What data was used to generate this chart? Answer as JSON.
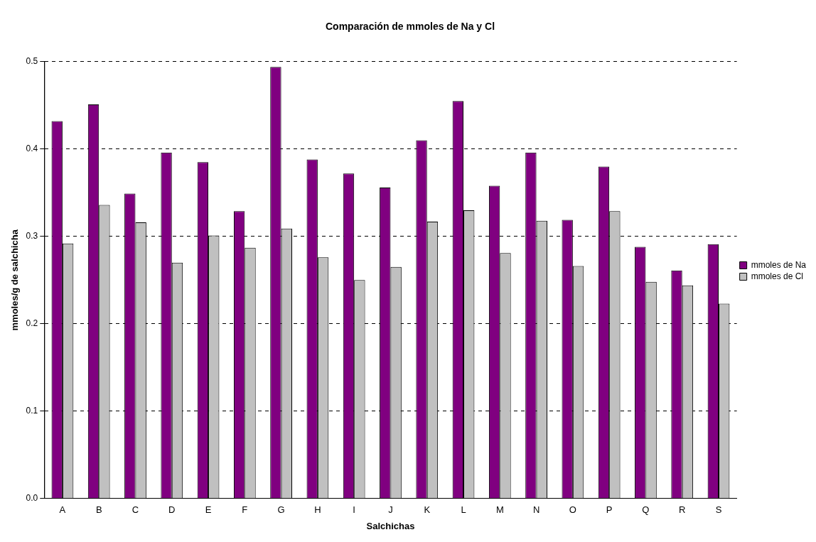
{
  "chart_data": {
    "type": "bar",
    "title": "Comparación de mmoles de Na y Cl",
    "xlabel": "Salchichas",
    "ylabel": "mmoles/g de salchicha",
    "categories": [
      "A",
      "B",
      "C",
      "D",
      "E",
      "F",
      "G",
      "H",
      "I",
      "J",
      "K",
      "L",
      "M",
      "N",
      "O",
      "P",
      "Q",
      "R",
      "S"
    ],
    "series": [
      {
        "name": "mmoles de Na",
        "color": "#800080",
        "values": [
          0.432,
          0.451,
          0.349,
          0.396,
          0.385,
          0.329,
          0.494,
          0.388,
          0.372,
          0.356,
          0.41,
          0.455,
          0.358,
          0.396,
          0.319,
          0.38,
          0.288,
          0.261,
          0.291
        ]
      },
      {
        "name": "mmoles de Cl",
        "color": "#c0c0c0",
        "values": [
          0.292,
          0.336,
          0.316,
          0.27,
          0.301,
          0.287,
          0.309,
          0.276,
          0.25,
          0.265,
          0.317,
          0.33,
          0.281,
          0.318,
          0.266,
          0.329,
          0.248,
          0.244,
          0.223
        ]
      }
    ],
    "ylim": [
      0,
      0.5
    ],
    "yticks": [
      {
        "value": 0,
        "label": "0.0"
      },
      {
        "value": 0.1,
        "label": "0.1"
      },
      {
        "value": 0.2,
        "label": "0.2"
      },
      {
        "value": 0.3,
        "label": "0.3"
      },
      {
        "value": 0.4,
        "label": "0.4"
      },
      {
        "value": 0.5,
        "label": "0.5"
      }
    ],
    "grid": "y",
    "legend": "right"
  }
}
